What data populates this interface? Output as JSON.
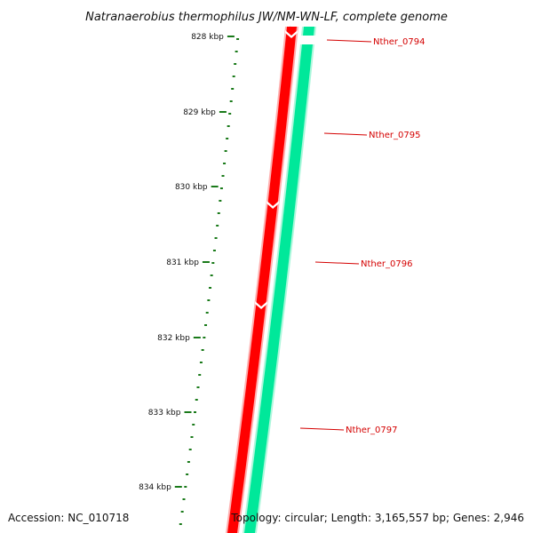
{
  "title": "Natranaerobius thermophilus JW/NM-WN-LF, complete genome",
  "footer": {
    "accession": "Accession: NC_010718",
    "topology": "Topology: circular; Length: 3,165,557 bp; Genes: 2,946"
  },
  "kbp_labels": [
    "828 kbp",
    "829 kbp",
    "830 kbp",
    "831 kbp",
    "832 kbp",
    "833 kbp",
    "834 kbp"
  ],
  "genes": [
    {
      "name": "Nther_0794",
      "strand": "reverse"
    },
    {
      "name": "Nther_0795",
      "strand": "forward"
    },
    {
      "name": "Nther_0796",
      "strand": "forward"
    },
    {
      "name": "Nther_0797",
      "strand": "forward"
    }
  ],
  "colors": {
    "backbone": "#7f7f7f",
    "reverse_strand": "#ff0000",
    "forward_strand": "#00e89a",
    "ruler": "#1a7a1a",
    "gene_label": "#d40000"
  }
}
